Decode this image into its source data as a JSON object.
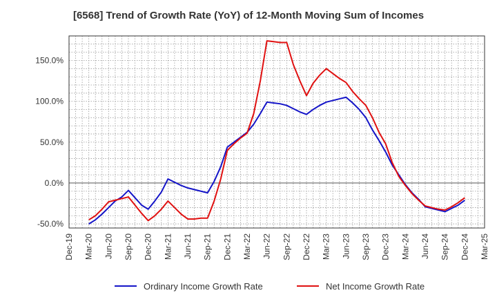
{
  "chart_data": {
    "type": "line",
    "title": "[6568]  Trend of Growth Rate (YoY) of 12-Month Moving Sum of Incomes",
    "xlabel": "",
    "ylabel": "",
    "ylim": [
      -55,
      180
    ],
    "y_ticks": [
      -50,
      0,
      50,
      100,
      150
    ],
    "y_tick_labels": [
      "-50.0%",
      "0.0%",
      "50.0%",
      "100.0%",
      "150.0%"
    ],
    "x_tick_labels": [
      "Dec-19",
      "Mar-20",
      "Jun-20",
      "Sep-20",
      "Dec-20",
      "Mar-21",
      "Jun-21",
      "Sep-21",
      "Dec-21",
      "Mar-22",
      "Jun-22",
      "Sep-22",
      "Dec-22",
      "Mar-23",
      "Jun-23",
      "Sep-23",
      "Dec-23",
      "Mar-24",
      "Jun-24",
      "Sep-24",
      "Dec-24",
      "Mar-25"
    ],
    "grid": true,
    "legend_position": "bottom",
    "x": [
      "Mar-20",
      "Apr-20",
      "May-20",
      "Jun-20",
      "Jul-20",
      "Aug-20",
      "Sep-20",
      "Oct-20",
      "Nov-20",
      "Dec-20",
      "Jan-21",
      "Feb-21",
      "Mar-21",
      "Apr-21",
      "May-21",
      "Jun-21",
      "Jul-21",
      "Aug-21",
      "Sep-21",
      "Oct-21",
      "Nov-21",
      "Dec-21",
      "Jan-22",
      "Feb-22",
      "Mar-22",
      "Apr-22",
      "May-22",
      "Jun-22",
      "Jul-22",
      "Aug-22",
      "Sep-22",
      "Oct-22",
      "Nov-22",
      "Dec-22",
      "Jan-23",
      "Feb-23",
      "Mar-23",
      "Apr-23",
      "May-23",
      "Jun-23",
      "Jul-23",
      "Aug-23",
      "Sep-23",
      "Oct-23",
      "Nov-23",
      "Dec-23",
      "Jan-24",
      "Feb-24",
      "Mar-24",
      "Apr-24",
      "May-24",
      "Jun-24",
      "Jul-24",
      "Aug-24",
      "Sep-24",
      "Oct-24",
      "Nov-24",
      "Dec-24"
    ],
    "series": [
      {
        "name": "Ordinary Income Growth Rate",
        "color": "#1414c8",
        "values": [
          -50,
          -45,
          -38,
          -30,
          -22,
          -17,
          -9,
          -18,
          -27,
          -32,
          -22,
          -11,
          5,
          1,
          -3,
          -6,
          -8,
          -10,
          -12,
          2,
          20,
          44,
          50,
          56,
          62,
          72,
          85,
          99,
          98,
          97,
          95,
          91,
          87,
          84,
          90,
          95,
          99,
          101,
          103,
          105,
          98,
          90,
          80,
          65,
          52,
          38,
          22,
          10,
          -2,
          -12,
          -20,
          -29,
          -31,
          -33,
          -35,
          -31,
          -27,
          -21
        ]
      },
      {
        "name": "Net Income Growth Rate",
        "color": "#e01010",
        "values": [
          -45,
          -40,
          -32,
          -23,
          -21,
          -19,
          -17,
          -27,
          -37,
          -46,
          -40,
          -32,
          -22,
          -30,
          -38,
          -44,
          -44,
          -43,
          -43,
          -22,
          5,
          40,
          48,
          55,
          61,
          85,
          125,
          174,
          173,
          172,
          172,
          145,
          125,
          107,
          122,
          132,
          140,
          134,
          128,
          123,
          112,
          103,
          95,
          80,
          62,
          48,
          25,
          8,
          -3,
          -13,
          -21,
          -28,
          -30,
          -32,
          -33,
          -29,
          -24,
          -18
        ]
      }
    ]
  }
}
